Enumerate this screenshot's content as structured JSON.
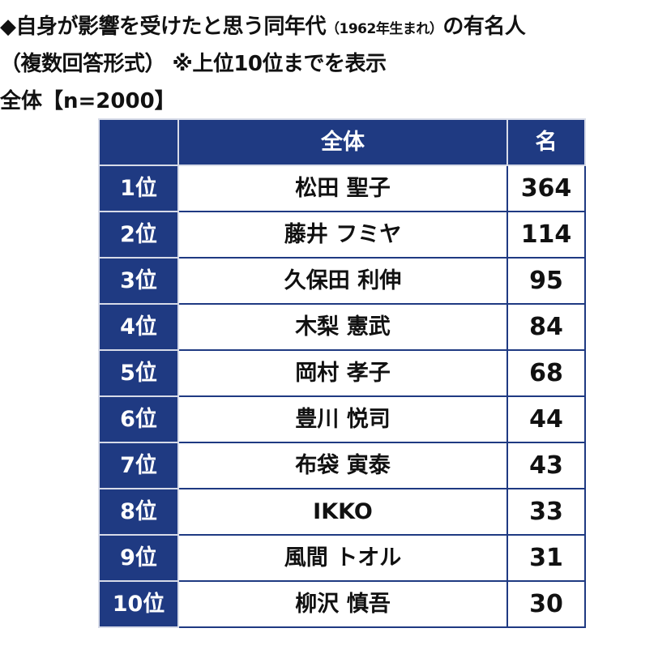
{
  "title": {
    "line1_main": "◆自身が影響を受けたと思う同年代",
    "line1_paren": "（1962年生まれ）",
    "line1_end": "の有名人",
    "line2": "（複数回答形式） ※上位10位までを表示"
  },
  "sample_label": "全体【n=2000】",
  "table": {
    "headers": {
      "corner": "",
      "name": "全体",
      "count": "名"
    },
    "rows": [
      {
        "rank": "1位",
        "name": "松田 聖子",
        "count": "364"
      },
      {
        "rank": "2位",
        "name": "藤井 フミヤ",
        "count": "114"
      },
      {
        "rank": "3位",
        "name": "久保田 利伸",
        "count": "95"
      },
      {
        "rank": "4位",
        "name": "木梨 憲武",
        "count": "84"
      },
      {
        "rank": "5位",
        "name": "岡村 孝子",
        "count": "68"
      },
      {
        "rank": "6位",
        "name": "豊川 悦司",
        "count": "44"
      },
      {
        "rank": "7位",
        "name": "布袋 寅泰",
        "count": "43"
      },
      {
        "rank": "8位",
        "name": "IKKO",
        "count": "33"
      },
      {
        "rank": "9位",
        "name": "風間 トオル",
        "count": "31"
      },
      {
        "rank": "10位",
        "name": "柳沢 慎吾",
        "count": "30"
      }
    ]
  },
  "colors": {
    "header_bg": "#1f3a82",
    "header_text": "#ffffff",
    "cell_border": "#1f3a82"
  }
}
